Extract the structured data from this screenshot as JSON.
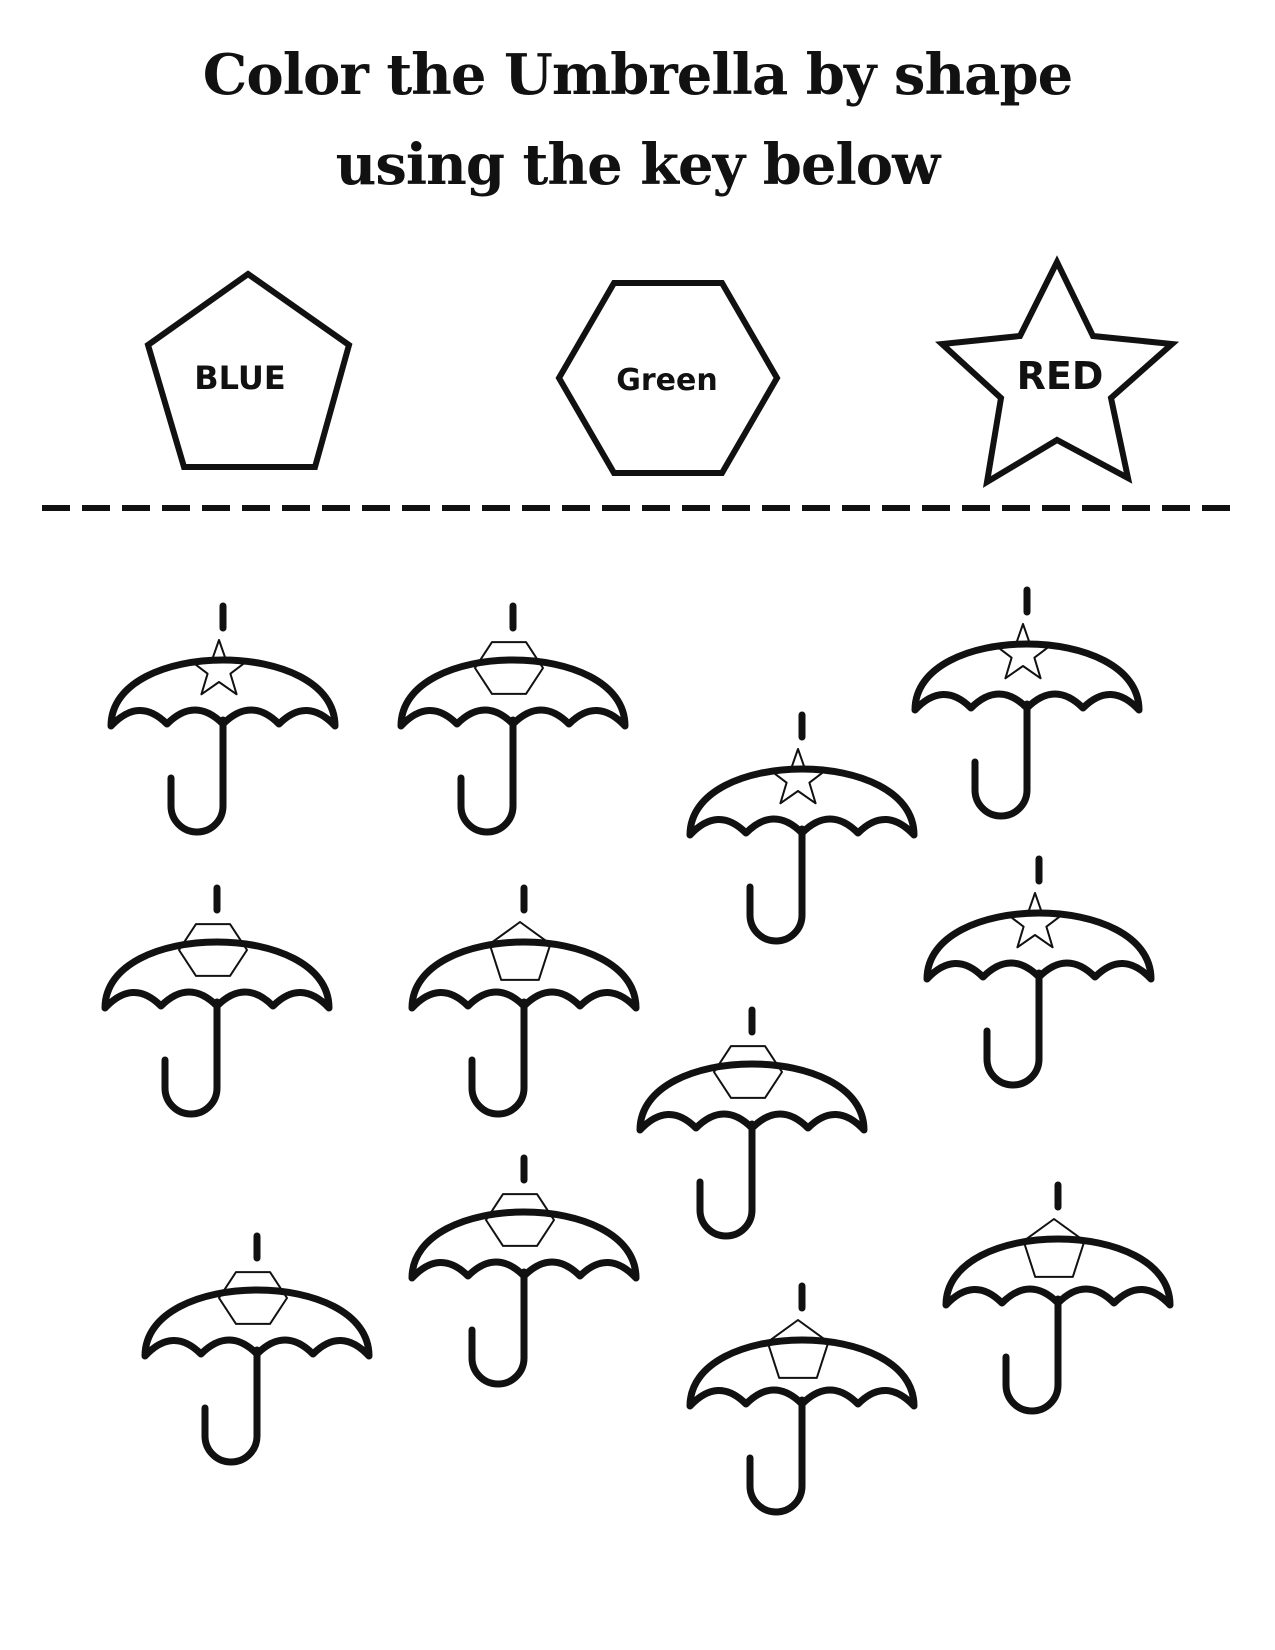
{
  "title": {
    "line1": "Color the Umbrella by shape",
    "line2": "using the key below"
  },
  "key": [
    {
      "shape": "pentagon",
      "label": "BLUE"
    },
    {
      "shape": "hexagon",
      "label": "Green"
    },
    {
      "shape": "star",
      "label": "RED"
    }
  ],
  "umbrellas": [
    {
      "shape": "star"
    },
    {
      "shape": "hexagon"
    },
    {
      "shape": "star"
    },
    {
      "shape": "star"
    },
    {
      "shape": "hexagon"
    },
    {
      "shape": "pentagon"
    },
    {
      "shape": "star"
    },
    {
      "shape": "hexagon"
    },
    {
      "shape": "hexagon"
    },
    {
      "shape": "hexagon"
    },
    {
      "shape": "pentagon"
    },
    {
      "shape": "pentagon"
    }
  ],
  "colors": {
    "ink": "#111111",
    "paper": "#ffffff"
  }
}
